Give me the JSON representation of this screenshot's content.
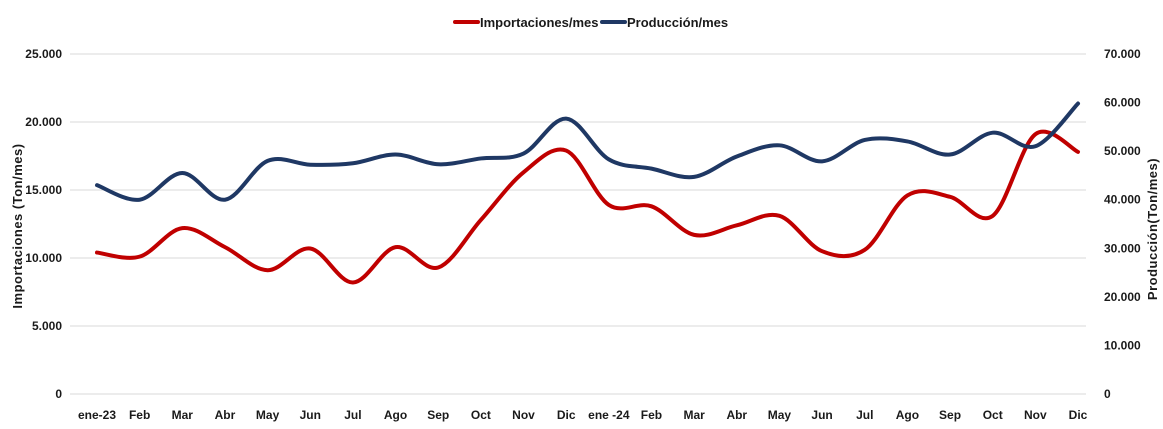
{
  "chart_data": {
    "type": "line",
    "title": "",
    "categories": [
      "ene-23",
      "Feb",
      "Mar",
      "Abr",
      "May",
      "Jun",
      "Jul",
      "Ago",
      "Sep",
      "Oct",
      "Nov",
      "Dic",
      "ene -24",
      "Feb",
      "Mar",
      "Abr",
      "May",
      "Jun",
      "Jul",
      "Ago",
      "Sep",
      "Oct",
      "Nov",
      "Dic"
    ],
    "series": [
      {
        "name": "Importaciones/mes",
        "axis": "left",
        "color": "#c00000",
        "values": [
          10400,
          10100,
          12200,
          10800,
          9100,
          10700,
          8200,
          10800,
          9300,
          12800,
          16300,
          17900,
          13900,
          13800,
          11700,
          12400,
          13100,
          10500,
          10600,
          14600,
          14500,
          13100,
          19100,
          17800
        ]
      },
      {
        "name": "Producción/mes",
        "axis": "right",
        "color": "#1f3864",
        "values": [
          43000,
          40000,
          45500,
          40000,
          48000,
          47200,
          47500,
          49300,
          47300,
          48500,
          49500,
          56700,
          48300,
          46400,
          44700,
          48900,
          51200,
          47900,
          52300,
          52000,
          49300,
          53800,
          51000,
          59800
        ]
      }
    ],
    "y_left": {
      "label": "Importaciones (Ton/mes)",
      "range": [
        0,
        25000
      ],
      "ticks": [
        0,
        5000,
        10000,
        15000,
        20000,
        25000
      ],
      "tick_labels": [
        "0",
        "5.000",
        "10.000",
        "15.000",
        "20.000",
        "25.000"
      ]
    },
    "y_right": {
      "label": "Producción(Ton/mes)",
      "range": [
        0,
        70000
      ],
      "ticks": [
        0,
        10000,
        20000,
        30000,
        40000,
        50000,
        60000,
        70000
      ],
      "tick_labels": [
        "0",
        "10.000",
        "20.000",
        "30.000",
        "40.000",
        "50.000",
        "60.000",
        "70.000"
      ]
    },
    "grid": true,
    "legend": "top-center"
  }
}
